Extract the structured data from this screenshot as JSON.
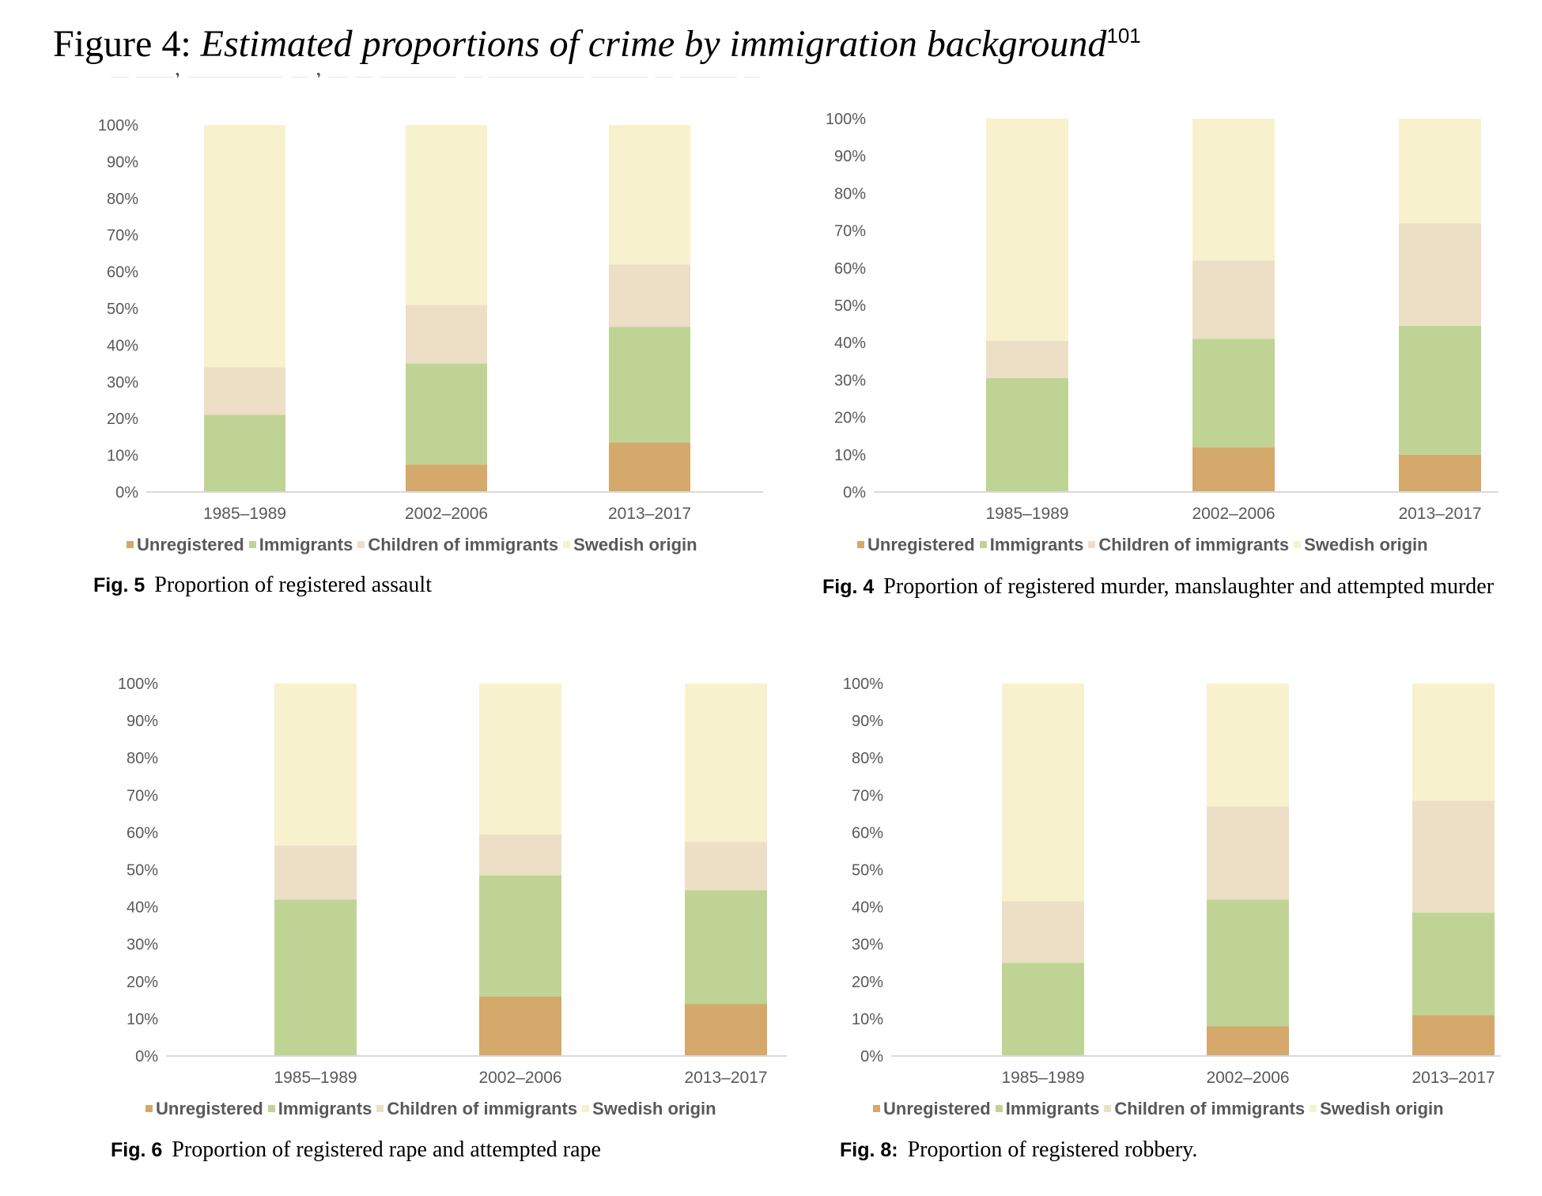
{
  "page": {
    "title_lead": "Figure 4: ",
    "title_italic": "Estimated proportions of crime by immigration background",
    "title_sup": "101"
  },
  "colors": {
    "Unregistered": "#d4a96b",
    "Immigrants": "#bfd494",
    "Children of immigrants": "#ecdfc5",
    "Swedish origin": "#f8f1cd",
    "axis": "#d9d9d9",
    "tick_text": "#595959"
  },
  "chart_data": [
    {
      "id": "assault",
      "type": "bar",
      "stacked": true,
      "percent": true,
      "caption_fig": "Fig. 5",
      "caption_text": "Proportion of registered assault",
      "categories": [
        "1985–1989",
        "2002–2006",
        "2013–2017"
      ],
      "yticks": [
        "0%",
        "10%",
        "20%",
        "30%",
        "40%",
        "50%",
        "60%",
        "70%",
        "80%",
        "90%",
        "100%"
      ],
      "ylim": [
        0,
        100
      ],
      "legend": [
        "Unregistered",
        "Immigrants",
        "Children of immigrants",
        "Swedish origin"
      ],
      "series": [
        {
          "name": "Unregistered",
          "values": [
            0,
            7.5,
            13.5
          ]
        },
        {
          "name": "Immigrants",
          "values": [
            21,
            27.5,
            31.5
          ]
        },
        {
          "name": "Children of immigrants",
          "values": [
            13,
            16,
            17
          ]
        },
        {
          "name": "Swedish origin",
          "values": [
            66,
            49,
            38
          ]
        }
      ]
    },
    {
      "id": "murder",
      "type": "bar",
      "stacked": true,
      "percent": true,
      "caption_fig": "Fig. 4",
      "caption_text": "Proportion of registered murder, manslaughter and attempted murder",
      "categories": [
        "1985–1989",
        "2002–2006",
        "2013–2017"
      ],
      "yticks": [
        "0%",
        "10%",
        "20%",
        "30%",
        "40%",
        "50%",
        "60%",
        "70%",
        "80%",
        "90%",
        "100%"
      ],
      "ylim": [
        0,
        100
      ],
      "legend": [
        "Unregistered",
        "Immigrants",
        "Children of immigrants",
        "Swedish origin"
      ],
      "series": [
        {
          "name": "Unregistered",
          "values": [
            0,
            12,
            10
          ]
        },
        {
          "name": "Immigrants",
          "values": [
            30.5,
            29,
            34.5
          ]
        },
        {
          "name": "Children of immigrants",
          "values": [
            10,
            21,
            27.5
          ]
        },
        {
          "name": "Swedish origin",
          "values": [
            59.5,
            38,
            28
          ]
        }
      ]
    },
    {
      "id": "rape",
      "type": "bar",
      "stacked": true,
      "percent": true,
      "caption_fig": "Fig. 6",
      "caption_text": "Proportion of registered rape and attempted rape",
      "categories": [
        "1985–1989",
        "2002–2006",
        "2013–2017"
      ],
      "yticks": [
        "0%",
        "10%",
        "20%",
        "30%",
        "40%",
        "50%",
        "60%",
        "70%",
        "80%",
        "90%",
        "100%"
      ],
      "ylim": [
        0,
        100
      ],
      "legend": [
        "Unregistered",
        "Immigrants",
        "Children of immigrants",
        "Swedish origin"
      ],
      "series": [
        {
          "name": "Unregistered",
          "values": [
            0,
            16,
            14
          ]
        },
        {
          "name": "Immigrants",
          "values": [
            42,
            32.5,
            30.5
          ]
        },
        {
          "name": "Children of immigrants",
          "values": [
            14.5,
            11,
            13
          ]
        },
        {
          "name": "Swedish origin",
          "values": [
            43.5,
            40.5,
            42.5
          ]
        }
      ]
    },
    {
      "id": "robbery",
      "type": "bar",
      "stacked": true,
      "percent": true,
      "caption_fig": "Fig. 8:",
      "caption_text": "Proportion of registered robbery.",
      "categories": [
        "1985–1989",
        "2002–2006",
        "2013–2017"
      ],
      "yticks": [
        "0%",
        "10%",
        "20%",
        "30%",
        "40%",
        "50%",
        "60%",
        "70%",
        "80%",
        "90%",
        "100%"
      ],
      "ylim": [
        0,
        100
      ],
      "legend": [
        "Unregistered",
        "Immigrants",
        "Children of immigrants",
        "Swedish origin"
      ],
      "series": [
        {
          "name": "Unregistered",
          "values": [
            0,
            8,
            11
          ]
        },
        {
          "name": "Immigrants",
          "values": [
            25,
            34,
            27.5
          ]
        },
        {
          "name": "Children of immigrants",
          "values": [
            16.5,
            25,
            30
          ]
        },
        {
          "name": "Swedish origin",
          "values": [
            58.5,
            33,
            31.5
          ]
        }
      ]
    }
  ]
}
